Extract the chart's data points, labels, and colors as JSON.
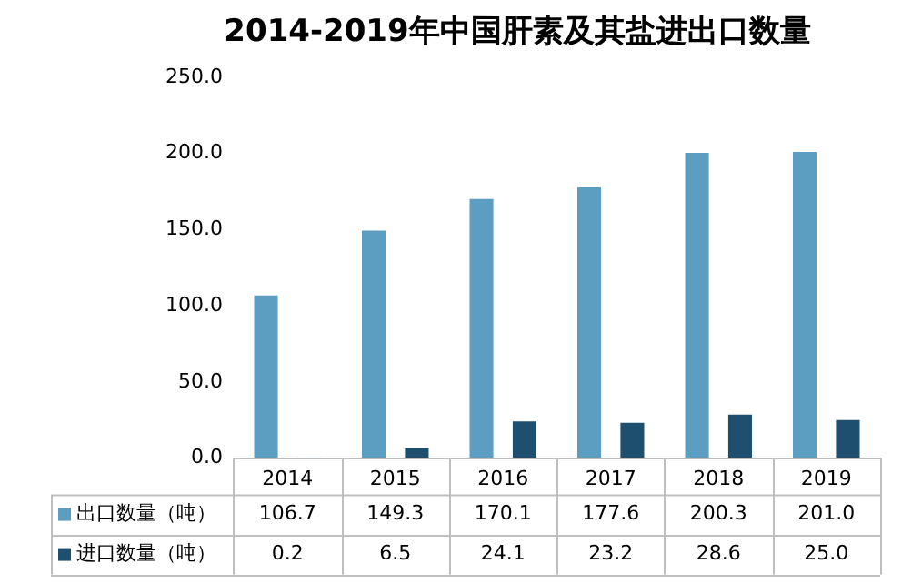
{
  "chart_data": {
    "type": "bar",
    "title": "2014-2019年中国肝素及其盐进出口数量",
    "categories": [
      "2014",
      "2015",
      "2016",
      "2017",
      "2018",
      "2019"
    ],
    "series": [
      {
        "name": "出口数量（吨）",
        "color": "#5c9dc2",
        "values": [
          106.7,
          149.3,
          170.1,
          177.6,
          200.3,
          201.0
        ],
        "value_labels": [
          "106.7",
          "149.3",
          "170.1",
          "177.6",
          "200.3",
          "201.0"
        ]
      },
      {
        "name": "进口数量（吨）",
        "color": "#1f4f6e",
        "values": [
          0.2,
          6.5,
          24.1,
          23.2,
          28.6,
          25.0
        ],
        "value_labels": [
          "0.2",
          "6.5",
          "24.1",
          "23.2",
          "28.6",
          "25.0"
        ]
      }
    ],
    "ylim": [
      0,
      250
    ],
    "yticks": [
      {
        "value": 0,
        "label": "0.0"
      },
      {
        "value": 50,
        "label": "50.0"
      },
      {
        "value": 100,
        "label": "100.0"
      },
      {
        "value": 150,
        "label": "150.0"
      },
      {
        "value": 200,
        "label": "200.0"
      },
      {
        "value": 250,
        "label": "250.0"
      }
    ],
    "grid": false,
    "legend": "bottom"
  }
}
